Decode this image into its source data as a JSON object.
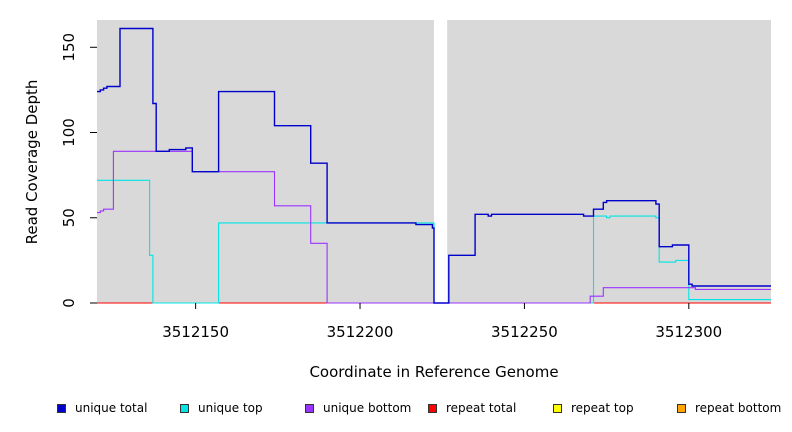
{
  "chart_data": {
    "type": "line",
    "title": "",
    "xlabel": "Coordinate in Reference Genome",
    "ylabel": "Read Coverage Depth",
    "xlim": [
      3512120,
      3512325
    ],
    "ylim": [
      0,
      166
    ],
    "x_ticks": [
      3512150,
      3512200,
      3512250,
      3512300
    ],
    "x_tick_labels": [
      "3512150",
      "3512200",
      "3512250",
      "3512300"
    ],
    "y_ticks": [
      0,
      50,
      100,
      150
    ],
    "y_tick_labels": [
      "0",
      "50",
      "100",
      "150"
    ],
    "grid": false,
    "legend_position": "bottom",
    "gap": [
      3512222.5,
      3512226.5
    ],
    "background_color": "#d9d9d9",
    "series": [
      {
        "name": "unique total",
        "color": "#0000cc",
        "points": [
          [
            3512120,
            124
          ],
          [
            3512121,
            125
          ],
          [
            3512122,
            126
          ],
          [
            3512123,
            127
          ],
          [
            3512127,
            161
          ],
          [
            3512137,
            117
          ],
          [
            3512138,
            89
          ],
          [
            3512142,
            90
          ],
          [
            3512147,
            91
          ],
          [
            3512149,
            77
          ],
          [
            3512157,
            124
          ],
          [
            3512174,
            104
          ],
          [
            3512185,
            82
          ],
          [
            3512190,
            47
          ],
          [
            3512217,
            46
          ],
          [
            3512222,
            44
          ],
          [
            3512222.5,
            0
          ],
          [
            3512226.5,
            0
          ],
          [
            3512227,
            28
          ],
          [
            3512235,
            52
          ],
          [
            3512239,
            51
          ],
          [
            3512240,
            52
          ],
          [
            3512268,
            51
          ],
          [
            3512271,
            55
          ],
          [
            3512274,
            59
          ],
          [
            3512275,
            60
          ],
          [
            3512290,
            58
          ],
          [
            3512291,
            33
          ],
          [
            3512295,
            34
          ],
          [
            3512300,
            11
          ],
          [
            3512301,
            10
          ],
          [
            3512325,
            10
          ]
        ]
      },
      {
        "name": "unique top",
        "color": "#00e5e5",
        "points": [
          [
            3512120,
            72
          ],
          [
            3512136,
            28
          ],
          [
            3512137,
            0
          ],
          [
            3512157,
            47
          ],
          [
            3512222.5,
            47
          ],
          [
            3512222.5,
            0
          ],
          [
            3512271,
            0
          ],
          [
            3512271,
            51
          ],
          [
            3512275,
            50
          ],
          [
            3512276,
            51
          ],
          [
            3512290,
            50
          ],
          [
            3512291,
            24
          ],
          [
            3512296,
            25
          ],
          [
            3512300,
            2
          ],
          [
            3512325,
            2
          ]
        ]
      },
      {
        "name": "unique bottom",
        "color": "#9933ff",
        "points": [
          [
            3512120,
            53
          ],
          [
            3512121,
            54
          ],
          [
            3512122,
            55
          ],
          [
            3512124,
            55
          ],
          [
            3512125,
            89
          ],
          [
            3512142,
            89
          ],
          [
            3512149,
            77
          ],
          [
            3512174,
            57
          ],
          [
            3512185,
            35
          ],
          [
            3512190,
            0
          ],
          [
            3512222.5,
            0
          ],
          [
            3512226.5,
            0
          ],
          [
            3512270,
            4
          ],
          [
            3512274,
            9
          ],
          [
            3512301,
            9
          ],
          [
            3512302,
            8
          ],
          [
            3512325,
            8
          ]
        ]
      },
      {
        "name": "repeat total",
        "color": "#ff0000",
        "points": [
          [
            3512120,
            0
          ],
          [
            3512325,
            0
          ]
        ]
      },
      {
        "name": "repeat top",
        "color": "#ffff00",
        "points": [
          [
            3512120,
            0
          ],
          [
            3512325,
            0
          ]
        ]
      },
      {
        "name": "repeat bottom",
        "color": "#ffa500",
        "points": [
          [
            3512120,
            0
          ],
          [
            3512325,
            0
          ]
        ]
      }
    ]
  }
}
